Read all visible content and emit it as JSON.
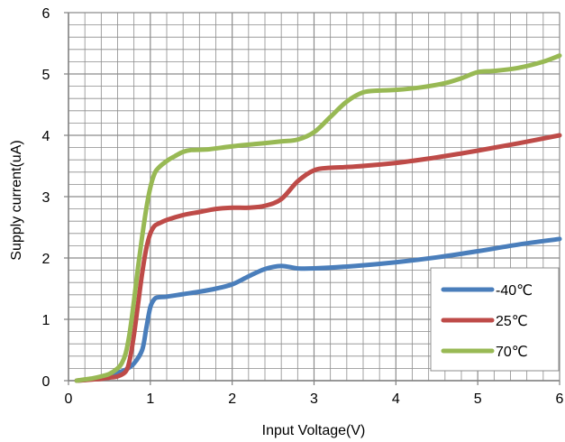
{
  "chart_data": {
    "type": "line",
    "title": "",
    "xlabel": "Input Voltage(V)",
    "ylabel": "Supply current(uA)",
    "xlim": [
      0,
      6
    ],
    "ylim": [
      0,
      6
    ],
    "x_ticks": [
      0,
      1,
      2,
      3,
      4,
      5,
      6
    ],
    "y_ticks": [
      0,
      1,
      2,
      3,
      4,
      5,
      6
    ],
    "x_tick_labels": [
      "0",
      "1",
      "2",
      "3",
      "4",
      "5",
      "6"
    ],
    "y_tick_labels": [
      "0",
      "1",
      "2",
      "3",
      "4",
      "5",
      "6"
    ],
    "grid": {
      "major": true,
      "minor": true,
      "minor_x_step": 0.2,
      "minor_y_step": 0.2,
      "color": "#8c8c8c"
    },
    "legend": {
      "placement": "bottom-right",
      "entries": [
        "-40℃",
        "25℃",
        "70℃"
      ]
    },
    "series": [
      {
        "name": "-40℃",
        "color": "#4a7ebb",
        "points": [
          [
            0.1,
            0.0
          ],
          [
            0.2,
            0.01
          ],
          [
            0.3,
            0.03
          ],
          [
            0.4,
            0.06
          ],
          [
            0.5,
            0.09
          ],
          [
            0.6,
            0.13
          ],
          [
            0.7,
            0.18
          ],
          [
            0.8,
            0.28
          ],
          [
            0.9,
            0.5
          ],
          [
            0.95,
            0.85
          ],
          [
            1.0,
            1.2
          ],
          [
            1.05,
            1.33
          ],
          [
            1.1,
            1.36
          ],
          [
            1.2,
            1.37
          ],
          [
            1.4,
            1.41
          ],
          [
            1.6,
            1.45
          ],
          [
            1.8,
            1.5
          ],
          [
            2.0,
            1.57
          ],
          [
            2.2,
            1.7
          ],
          [
            2.4,
            1.82
          ],
          [
            2.6,
            1.87
          ],
          [
            2.8,
            1.83
          ],
          [
            3.0,
            1.83
          ],
          [
            3.5,
            1.87
          ],
          [
            4.0,
            1.93
          ],
          [
            4.5,
            2.01
          ],
          [
            5.0,
            2.11
          ],
          [
            5.5,
            2.22
          ],
          [
            6.0,
            2.31
          ]
        ]
      },
      {
        "name": "25℃",
        "color": "#be4b48",
        "points": [
          [
            0.1,
            0.0
          ],
          [
            0.2,
            0.01
          ],
          [
            0.3,
            0.02
          ],
          [
            0.4,
            0.03
          ],
          [
            0.5,
            0.05
          ],
          [
            0.6,
            0.07
          ],
          [
            0.7,
            0.15
          ],
          [
            0.75,
            0.35
          ],
          [
            0.8,
            0.75
          ],
          [
            0.85,
            1.25
          ],
          [
            0.9,
            1.75
          ],
          [
            0.95,
            2.15
          ],
          [
            1.0,
            2.4
          ],
          [
            1.05,
            2.52
          ],
          [
            1.1,
            2.56
          ],
          [
            1.2,
            2.62
          ],
          [
            1.4,
            2.7
          ],
          [
            1.6,
            2.75
          ],
          [
            1.8,
            2.8
          ],
          [
            2.0,
            2.82
          ],
          [
            2.2,
            2.82
          ],
          [
            2.4,
            2.85
          ],
          [
            2.6,
            2.96
          ],
          [
            2.8,
            3.25
          ],
          [
            3.0,
            3.43
          ],
          [
            3.2,
            3.47
          ],
          [
            3.5,
            3.49
          ],
          [
            4.0,
            3.55
          ],
          [
            4.5,
            3.64
          ],
          [
            5.0,
            3.75
          ],
          [
            5.5,
            3.87
          ],
          [
            6.0,
            4.0
          ]
        ]
      },
      {
        "name": "70℃",
        "color": "#98b954",
        "points": [
          [
            0.1,
            0.0
          ],
          [
            0.2,
            0.02
          ],
          [
            0.3,
            0.04
          ],
          [
            0.4,
            0.07
          ],
          [
            0.5,
            0.11
          ],
          [
            0.6,
            0.2
          ],
          [
            0.65,
            0.28
          ],
          [
            0.7,
            0.45
          ],
          [
            0.75,
            0.8
          ],
          [
            0.8,
            1.3
          ],
          [
            0.85,
            1.85
          ],
          [
            0.9,
            2.35
          ],
          [
            0.95,
            2.8
          ],
          [
            1.0,
            3.15
          ],
          [
            1.05,
            3.37
          ],
          [
            1.1,
            3.47
          ],
          [
            1.2,
            3.58
          ],
          [
            1.3,
            3.66
          ],
          [
            1.4,
            3.73
          ],
          [
            1.5,
            3.76
          ],
          [
            1.7,
            3.77
          ],
          [
            2.0,
            3.82
          ],
          [
            2.3,
            3.86
          ],
          [
            2.6,
            3.9
          ],
          [
            2.8,
            3.93
          ],
          [
            3.0,
            4.05
          ],
          [
            3.2,
            4.3
          ],
          [
            3.4,
            4.55
          ],
          [
            3.6,
            4.7
          ],
          [
            3.8,
            4.73
          ],
          [
            4.0,
            4.74
          ],
          [
            4.3,
            4.78
          ],
          [
            4.6,
            4.85
          ],
          [
            4.8,
            4.93
          ],
          [
            5.0,
            5.03
          ],
          [
            5.2,
            5.05
          ],
          [
            5.5,
            5.1
          ],
          [
            5.8,
            5.2
          ],
          [
            6.0,
            5.3
          ]
        ]
      }
    ]
  }
}
